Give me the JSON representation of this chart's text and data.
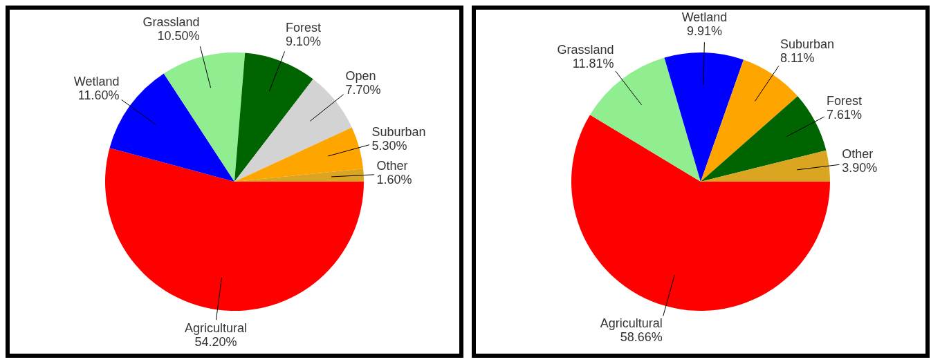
{
  "chart_data": [
    {
      "type": "pie",
      "categories": [
        "Agricultural",
        "Wetland",
        "Grassland",
        "Forest",
        "Open",
        "Suburban",
        "Other"
      ],
      "values": [
        54.2,
        11.6,
        10.5,
        9.1,
        7.7,
        5.3,
        1.6
      ],
      "colors": [
        "#ff0000",
        "#0000ff",
        "#90ee90",
        "#006400",
        "#d3d3d3",
        "#ffa500",
        "#daa520"
      ],
      "value_labels": [
        "54.20%",
        "11.60%",
        "10.50%",
        "9.10%",
        "7.70%",
        "5.30%",
        "1.60%"
      ]
    },
    {
      "type": "pie",
      "categories": [
        "Agricultural",
        "Grassland",
        "Wetland",
        "Suburban",
        "Forest",
        "Other"
      ],
      "values": [
        58.66,
        11.81,
        9.91,
        8.11,
        7.61,
        3.9
      ],
      "colors": [
        "#ff0000",
        "#90ee90",
        "#0000ff",
        "#ffa500",
        "#006400",
        "#daa520"
      ],
      "value_labels": [
        "58.66%",
        "11.81%",
        "9.91%",
        "8.11%",
        "7.61%",
        "3.90%"
      ]
    }
  ]
}
